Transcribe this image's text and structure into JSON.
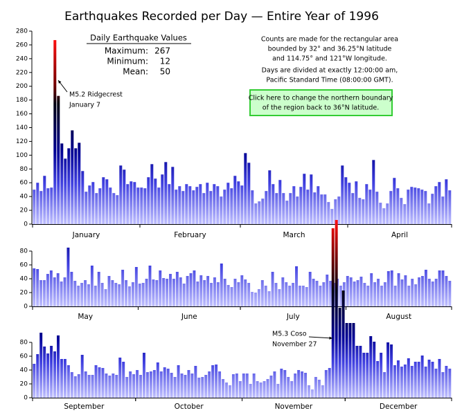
{
  "title": "Earthquakes Recorded per Day  —  Entire Year of 1996",
  "stats": {
    "heading": "Daily Earthquake Values",
    "rows": [
      {
        "label": "Maximum:",
        "value": 267
      },
      {
        "label": "Minimum:",
        "value": 12
      },
      {
        "label": "Mean:",
        "value": 50
      }
    ]
  },
  "notes": [
    "Counts are made for the rectangular area",
    "bounded by 32° and 36.25°N latitude",
    "and 114.75° and 121°W longitude.",
    "Days are divided at exactly 12:00:00 am,",
    "Pacific Standard Time (08:00:00 GMT)."
  ],
  "button": [
    "Click here to change the northern boundary",
    "of the region back to 36°N latitude."
  ],
  "chart_data": [
    {
      "type": "bar",
      "ylim": [
        0,
        280
      ],
      "yticks": [
        0,
        20,
        40,
        60,
        80,
        100,
        120,
        140,
        160,
        180,
        200,
        220,
        240,
        260,
        280
      ],
      "annotation": [
        "M5.2 Ridgecrest",
        "January 7"
      ],
      "months": [
        {
          "name": "January",
          "values": [
            50,
            60,
            48,
            70,
            52,
            53,
            267,
            186,
            117,
            95,
            110,
            136,
            110,
            118,
            77,
            47,
            56,
            61,
            45,
            52,
            68,
            65,
            53,
            45,
            42,
            85,
            79,
            58,
            62,
            61,
            53
          ]
        },
        {
          "name": "February",
          "values": [
            53,
            52,
            68,
            87,
            66,
            53,
            72,
            90,
            58,
            83,
            50,
            55,
            48,
            58,
            55,
            49,
            54,
            58,
            45,
            60,
            48,
            58,
            55,
            40,
            50,
            60,
            52,
            70,
            62
          ]
        },
        {
          "name": "March",
          "values": [
            56,
            103,
            89,
            49,
            30,
            33,
            37,
            48,
            78,
            58,
            45,
            64,
            45,
            34,
            45,
            55,
            40,
            54,
            73,
            50,
            72,
            46,
            55,
            43,
            43,
            32,
            22,
            36,
            40,
            85,
            68
          ]
        },
        {
          "name": "April",
          "values": [
            60,
            45,
            62,
            38,
            36,
            58,
            50,
            93,
            47,
            31,
            23,
            30,
            48,
            67,
            52,
            38,
            29,
            50,
            54,
            53,
            52,
            50,
            48,
            30,
            44,
            55,
            61,
            40,
            65,
            49
          ]
        }
      ]
    },
    {
      "type": "bar",
      "ylim": [
        0,
        80
      ],
      "yticks": [
        0,
        20,
        40,
        60,
        80
      ],
      "months": [
        {
          "name": "May",
          "values": [
            55,
            54,
            38,
            38,
            47,
            52,
            42,
            48,
            36,
            42,
            85,
            50,
            37,
            30,
            34,
            38,
            32,
            59,
            30,
            50,
            34,
            25,
            44,
            38,
            34,
            32,
            53,
            38,
            29,
            35,
            57
          ]
        },
        {
          "name": "June",
          "values": [
            33,
            34,
            40,
            59,
            39,
            38,
            52,
            41,
            40,
            47,
            40,
            50,
            42,
            33,
            44,
            48,
            52,
            36,
            45,
            38,
            44,
            34,
            42,
            35,
            62,
            40,
            31,
            28,
            40,
            35
          ]
        },
        {
          "name": "July",
          "values": [
            45,
            39,
            34,
            21,
            20,
            25,
            38,
            30,
            22,
            50,
            34,
            25,
            42,
            35,
            30,
            34,
            58,
            30,
            30,
            28,
            50,
            40,
            37,
            30,
            35,
            46,
            37,
            34,
            40,
            30,
            35
          ]
        },
        {
          "name": "August",
          "values": [
            44,
            42,
            36,
            38,
            43,
            34,
            30,
            48,
            35,
            40,
            30,
            35,
            51,
            52,
            30,
            48,
            39,
            45,
            30,
            40,
            32,
            42,
            44,
            53,
            40,
            36,
            40,
            52,
            52,
            44,
            37
          ]
        }
      ]
    },
    {
      "type": "bar",
      "ylim": [
        0,
        80
      ],
      "yticks": [
        0,
        20,
        40,
        60,
        80
      ],
      "annotation": [
        "M5.3 Coso",
        "November 27"
      ],
      "months": [
        {
          "name": "September",
          "values": [
            49,
            63,
            94,
            74,
            64,
            75,
            67,
            90,
            56,
            56,
            47,
            37,
            31,
            34,
            62,
            38,
            33,
            33,
            47,
            44,
            43,
            35,
            32,
            35,
            33,
            58,
            52,
            30,
            38,
            34
          ]
        },
        {
          "name": "October",
          "values": [
            40,
            33,
            65,
            37,
            38,
            40,
            51,
            38,
            44,
            42,
            36,
            30,
            47,
            35,
            33,
            40,
            35,
            46,
            29,
            30,
            33,
            38,
            47,
            48,
            38,
            27,
            22,
            18,
            34,
            35,
            24
          ]
        },
        {
          "name": "November",
          "values": [
            35,
            35,
            20,
            35,
            24,
            22,
            24,
            27,
            32,
            38,
            20,
            42,
            40,
            30,
            24,
            35,
            40,
            38,
            36,
            18,
            12,
            30,
            26,
            18,
            40,
            43,
            245,
            257,
            130,
            155
          ]
        },
        {
          "name": "December",
          "values": [
            108,
            108,
            108,
            75,
            75,
            65,
            65,
            89,
            81,
            53,
            65,
            37,
            80,
            77,
            47,
            54,
            45,
            48,
            57,
            46,
            52,
            52,
            61,
            45,
            55,
            52,
            42,
            56,
            37,
            46,
            42
          ]
        }
      ]
    }
  ]
}
